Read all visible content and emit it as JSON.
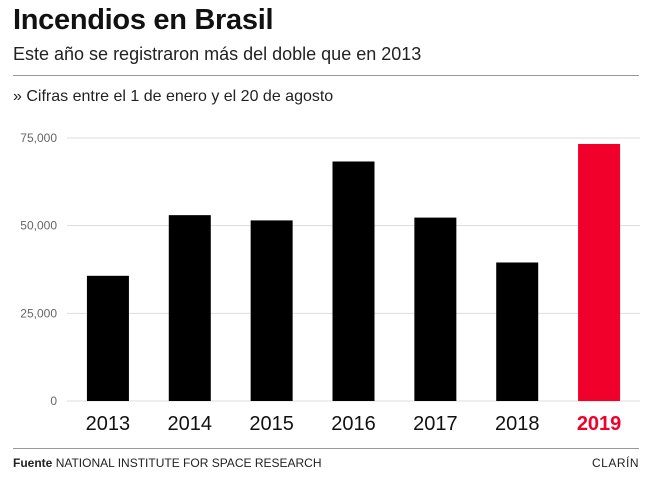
{
  "header": {
    "title": "Incendios en Brasil",
    "subtitle": "Este año se registraron más del doble que en 2013",
    "note": "» Cifras entre el 1 de enero y el 20 de agosto"
  },
  "footer": {
    "source_label": "Fuente",
    "source_text": "NATIONAL INSTITUTE FOR SPACE RESEARCH",
    "brand": "CLARÍN"
  },
  "colors": {
    "bar": "#000000",
    "highlight": "#f0002a",
    "grid": "#dddddd"
  },
  "chart_data": {
    "type": "bar",
    "title": "Incendios en Brasil",
    "subtitle": "Este año se registraron más del doble que en 2013",
    "categories": [
      "2013",
      "2014",
      "2015",
      "2016",
      "2017",
      "2018",
      "2019"
    ],
    "values": [
      35700,
      53000,
      51500,
      68300,
      52300,
      39500,
      73300
    ],
    "highlight_category": "2019",
    "ylim": [
      0,
      75000
    ],
    "yticks": [
      0,
      25000,
      50000,
      75000
    ],
    "ytick_labels": [
      "0",
      "25,000",
      "50,000",
      "75,000"
    ],
    "xlabel": "",
    "ylabel": "",
    "grid": true
  }
}
